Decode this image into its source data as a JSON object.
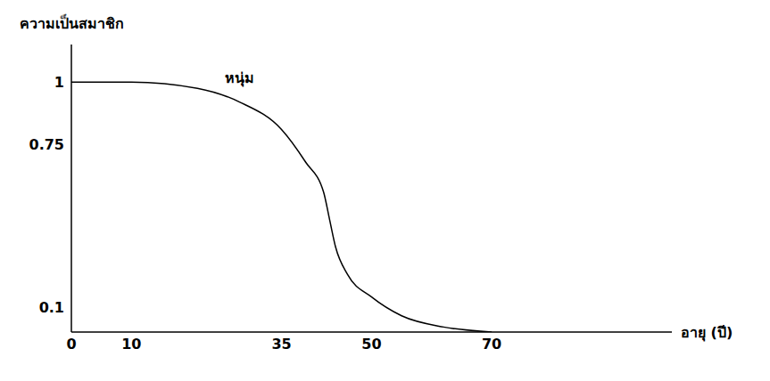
{
  "chart_data": {
    "type": "line",
    "x_label": "อายุ (ปี)",
    "y_label": "ความเป็นสมาชิก",
    "x": [
      0,
      10,
      21,
      28,
      35,
      39,
      42,
      43,
      44,
      46,
      50,
      55,
      62,
      70
    ],
    "series": [
      {
        "name": "หนุ่ม",
        "color": "#000000",
        "line_style": "solid",
        "marker": "none",
        "values": [
          1,
          1,
          0.975,
          0.92,
          0.81,
          0.68,
          0.56,
          0.45,
          0.34,
          0.23,
          0.14,
          0.065,
          0.02,
          0
        ]
      }
    ],
    "xlim": [
      0,
      100
    ],
    "xticks": [
      0,
      10,
      35,
      50,
      70
    ],
    "ylim": [
      0,
      1.15
    ],
    "yticks": [
      0.1,
      0.75,
      1
    ],
    "grid": false
  }
}
